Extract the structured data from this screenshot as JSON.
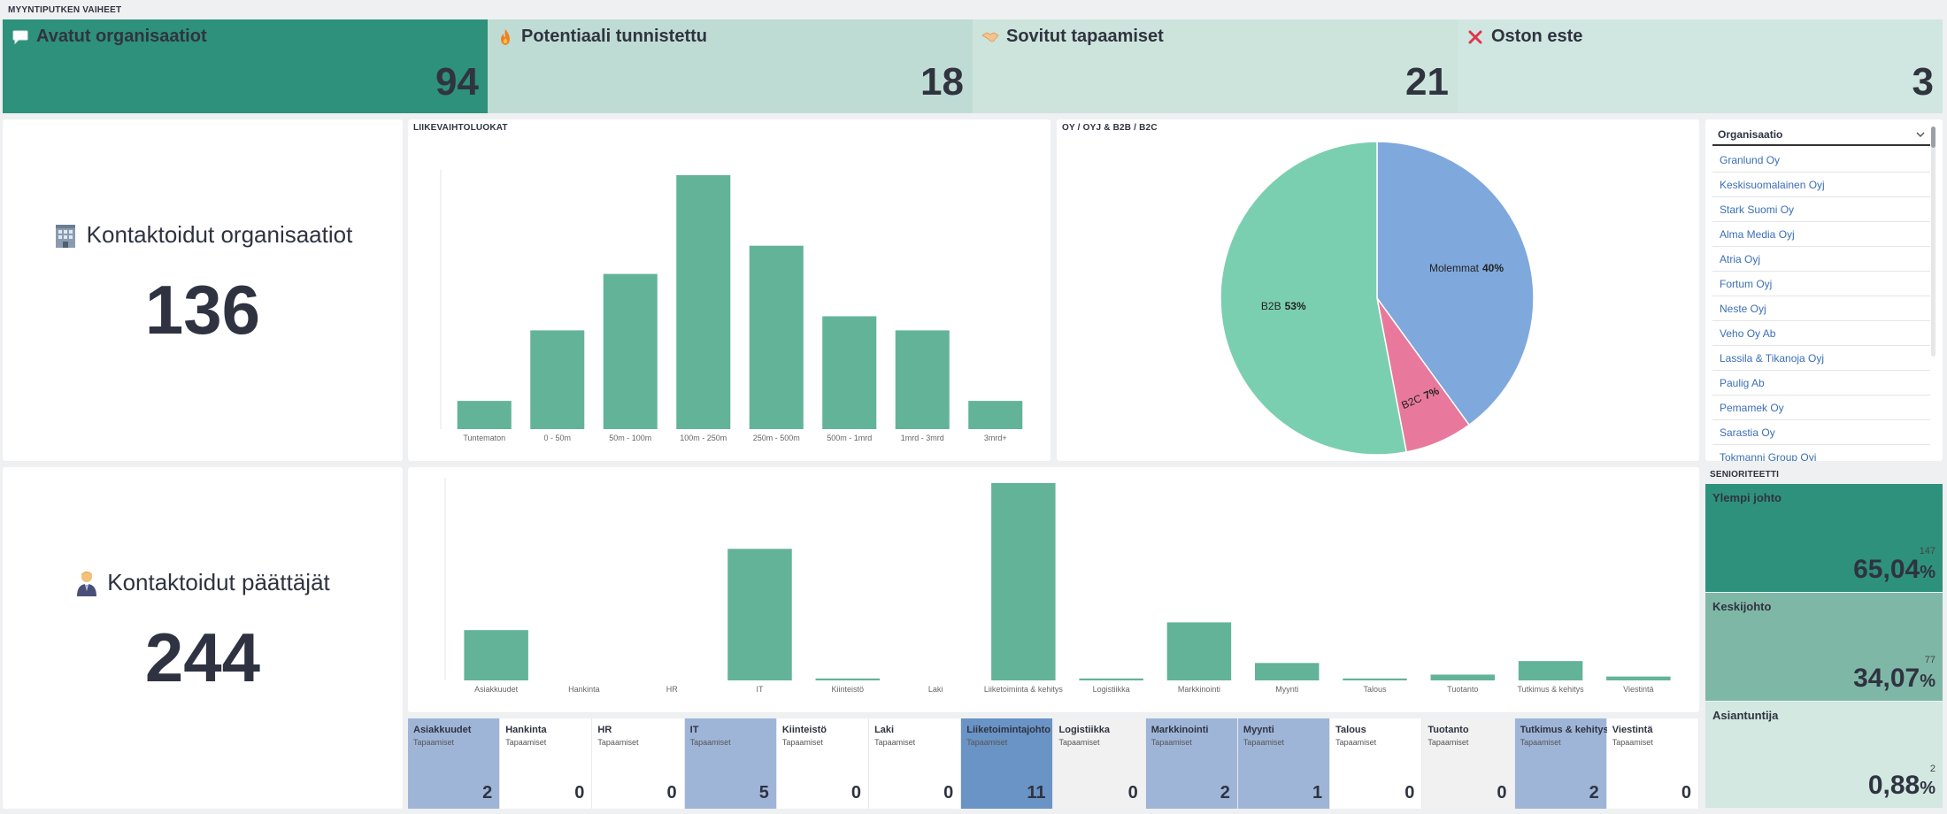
{
  "header": {
    "section_title": "MYYNTIPUTKEN VAIHEET"
  },
  "kpis": [
    {
      "title": "Avatut organisaatiot",
      "value": "94",
      "icon": "speech-bubble-icon",
      "bg": "#2e917b"
    },
    {
      "title": "Potentiaali tunnistettu",
      "value": "18",
      "icon": "fire-icon",
      "bg": "#bfdcd4"
    },
    {
      "title": "Sovitut tapaamiset",
      "value": "21",
      "icon": "handshake-icon",
      "bg": "#cde4dd"
    },
    {
      "title": "Oston este",
      "value": "3",
      "icon": "cross-icon",
      "bg": "#d0e6e0"
    }
  ],
  "counters": {
    "organisations": {
      "title": "Kontaktoidut organisaatiot",
      "value": "136",
      "icon": "office-building-icon"
    },
    "decision_makers": {
      "title": "Kontaktoidut päättäjät",
      "value": "244",
      "icon": "businessperson-icon"
    }
  },
  "colors": {
    "bar": "#63b399",
    "pie_b2b": "#7bcfb1",
    "pie_b2c": "#e8799d",
    "pie_both": "#7fa8dc"
  },
  "chart_data": [
    {
      "type": "bar",
      "title": "LIIKEVAIHTOLUOKAT",
      "categories": [
        "Tuntematon",
        "0 - 50m",
        "50m - 100m",
        "100m - 250m",
        "250m - 500m",
        "500m - 1mrd",
        "1mrd - 3mrd",
        "3mrd+"
      ],
      "values": [
        4,
        14,
        22,
        36,
        26,
        16,
        14,
        4
      ],
      "ylim": [
        0,
        36
      ],
      "grid": false
    },
    {
      "type": "pie",
      "title": "OY / OYJ & B2B / B2C",
      "labels": [
        "Molemmat",
        "B2C",
        "B2B"
      ],
      "values": [
        40,
        7,
        53
      ],
      "pct_labels": [
        "40%",
        "7%",
        "53%"
      ]
    },
    {
      "type": "bar",
      "title": "",
      "categories": [
        "Asiakkuudet",
        "Hankinta",
        "HR",
        "IT",
        "Kiinteistö",
        "Laki",
        "Liiketoiminta & kehitys",
        "Logistiikka",
        "Markkinointi",
        "Myynti",
        "Talous",
        "Tuotanto",
        "Tutkimus & kehitys",
        "Viestintä"
      ],
      "values": [
        26,
        0,
        0,
        68,
        1,
        0,
        102,
        1,
        30,
        9,
        1,
        3,
        10,
        2
      ],
      "ylim": [
        0,
        102
      ],
      "grid": false
    }
  ],
  "org_list": {
    "header": "Organisaatio",
    "items": [
      "Granlund Oy",
      "Keskisuomalainen Oyj",
      "Stark Suomi Oy",
      "Alma Media Oyj",
      "Atria Oyj",
      "Fortum Oyj",
      "Neste Oyj",
      "Veho Oy Ab",
      "Lassila & Tikanoja Oyj",
      "Paulig Ab",
      "Pemamek Oy",
      "Sarastia Oy",
      "Tokmanni Group Oyj"
    ]
  },
  "seniority": {
    "title": "SENIORITEETTI",
    "items": [
      {
        "label": "Ylempi johto",
        "count": "147",
        "pct": "65,04",
        "unit": "%",
        "bg": "#2e917b"
      },
      {
        "label": "Keskijohto",
        "count": "77",
        "pct": "34,07",
        "unit": "%",
        "bg": "#7fb7a6"
      },
      {
        "label": "Asiantuntija",
        "count": "2",
        "pct": "0,88",
        "unit": "%",
        "bg": "#d2e8e1"
      }
    ]
  },
  "departments": [
    {
      "name": "Asiakkuudet",
      "sub": "Tapaamiset",
      "value": "2",
      "bg": "#9fb5d8"
    },
    {
      "name": "Hankinta",
      "sub": "Tapaamiset",
      "value": "0",
      "bg": "#ffffff"
    },
    {
      "name": "HR",
      "sub": "Tapaamiset",
      "value": "0",
      "bg": "#ffffff"
    },
    {
      "name": "IT",
      "sub": "Tapaamiset",
      "value": "5",
      "bg": "#9fb5d8"
    },
    {
      "name": "Kiinteistö",
      "sub": "Tapaamiset",
      "value": "0",
      "bg": "#ffffff"
    },
    {
      "name": "Laki",
      "sub": "Tapaamiset",
      "value": "0",
      "bg": "#ffffff"
    },
    {
      "name": "Liiketoimintajohto",
      "sub": "Tapaamiset",
      "value": "11",
      "bg": "#6a93c6"
    },
    {
      "name": "Logistiikka",
      "sub": "Tapaamiset",
      "value": "0",
      "bg": "#f1f1f2"
    },
    {
      "name": "Markkinointi",
      "sub": "Tapaamiset",
      "value": "2",
      "bg": "#9fb5d8"
    },
    {
      "name": "Myynti",
      "sub": "Tapaamiset",
      "value": "1",
      "bg": "#9fb5d8"
    },
    {
      "name": "Talous",
      "sub": "Tapaamiset",
      "value": "0",
      "bg": "#ffffff"
    },
    {
      "name": "Tuotanto",
      "sub": "Tapaamiset",
      "value": "0",
      "bg": "#f1f1f2"
    },
    {
      "name": "Tutkimus & kehitys",
      "sub": "Tapaamiset",
      "value": "2",
      "bg": "#9fb5d8"
    },
    {
      "name": "Viestintä",
      "sub": "Tapaamiset",
      "value": "0",
      "bg": "#ffffff"
    }
  ]
}
